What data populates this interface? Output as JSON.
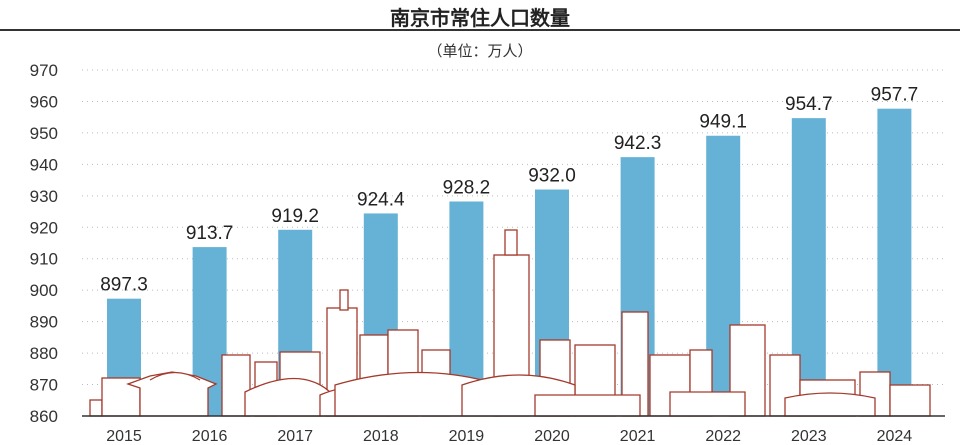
{
  "chart_data": {
    "type": "bar",
    "title": "南京市常住人口数量",
    "subtitle": "（单位：万人）",
    "categories": [
      "2015",
      "2016",
      "2017",
      "2018",
      "2019",
      "2020",
      "2021",
      "2022",
      "2023",
      "2024"
    ],
    "values": [
      897.3,
      913.7,
      919.2,
      924.4,
      928.2,
      932.0,
      942.3,
      949.1,
      954.7,
      957.7
    ],
    "value_labels": [
      "897.3",
      "913.7",
      "919.2",
      "924.4",
      "928.2",
      "932.0",
      "942.3",
      "949.1",
      "954.7",
      "957.7"
    ],
    "xlabel": "",
    "ylabel": "",
    "ylim": [
      860,
      970
    ],
    "yticks": [
      860,
      870,
      880,
      890,
      900,
      910,
      920,
      930,
      940,
      950,
      960,
      970
    ],
    "grid": "dotted horizontal",
    "colors": {
      "bar": "#66b2d6",
      "skyline": "#a33a2c"
    }
  }
}
